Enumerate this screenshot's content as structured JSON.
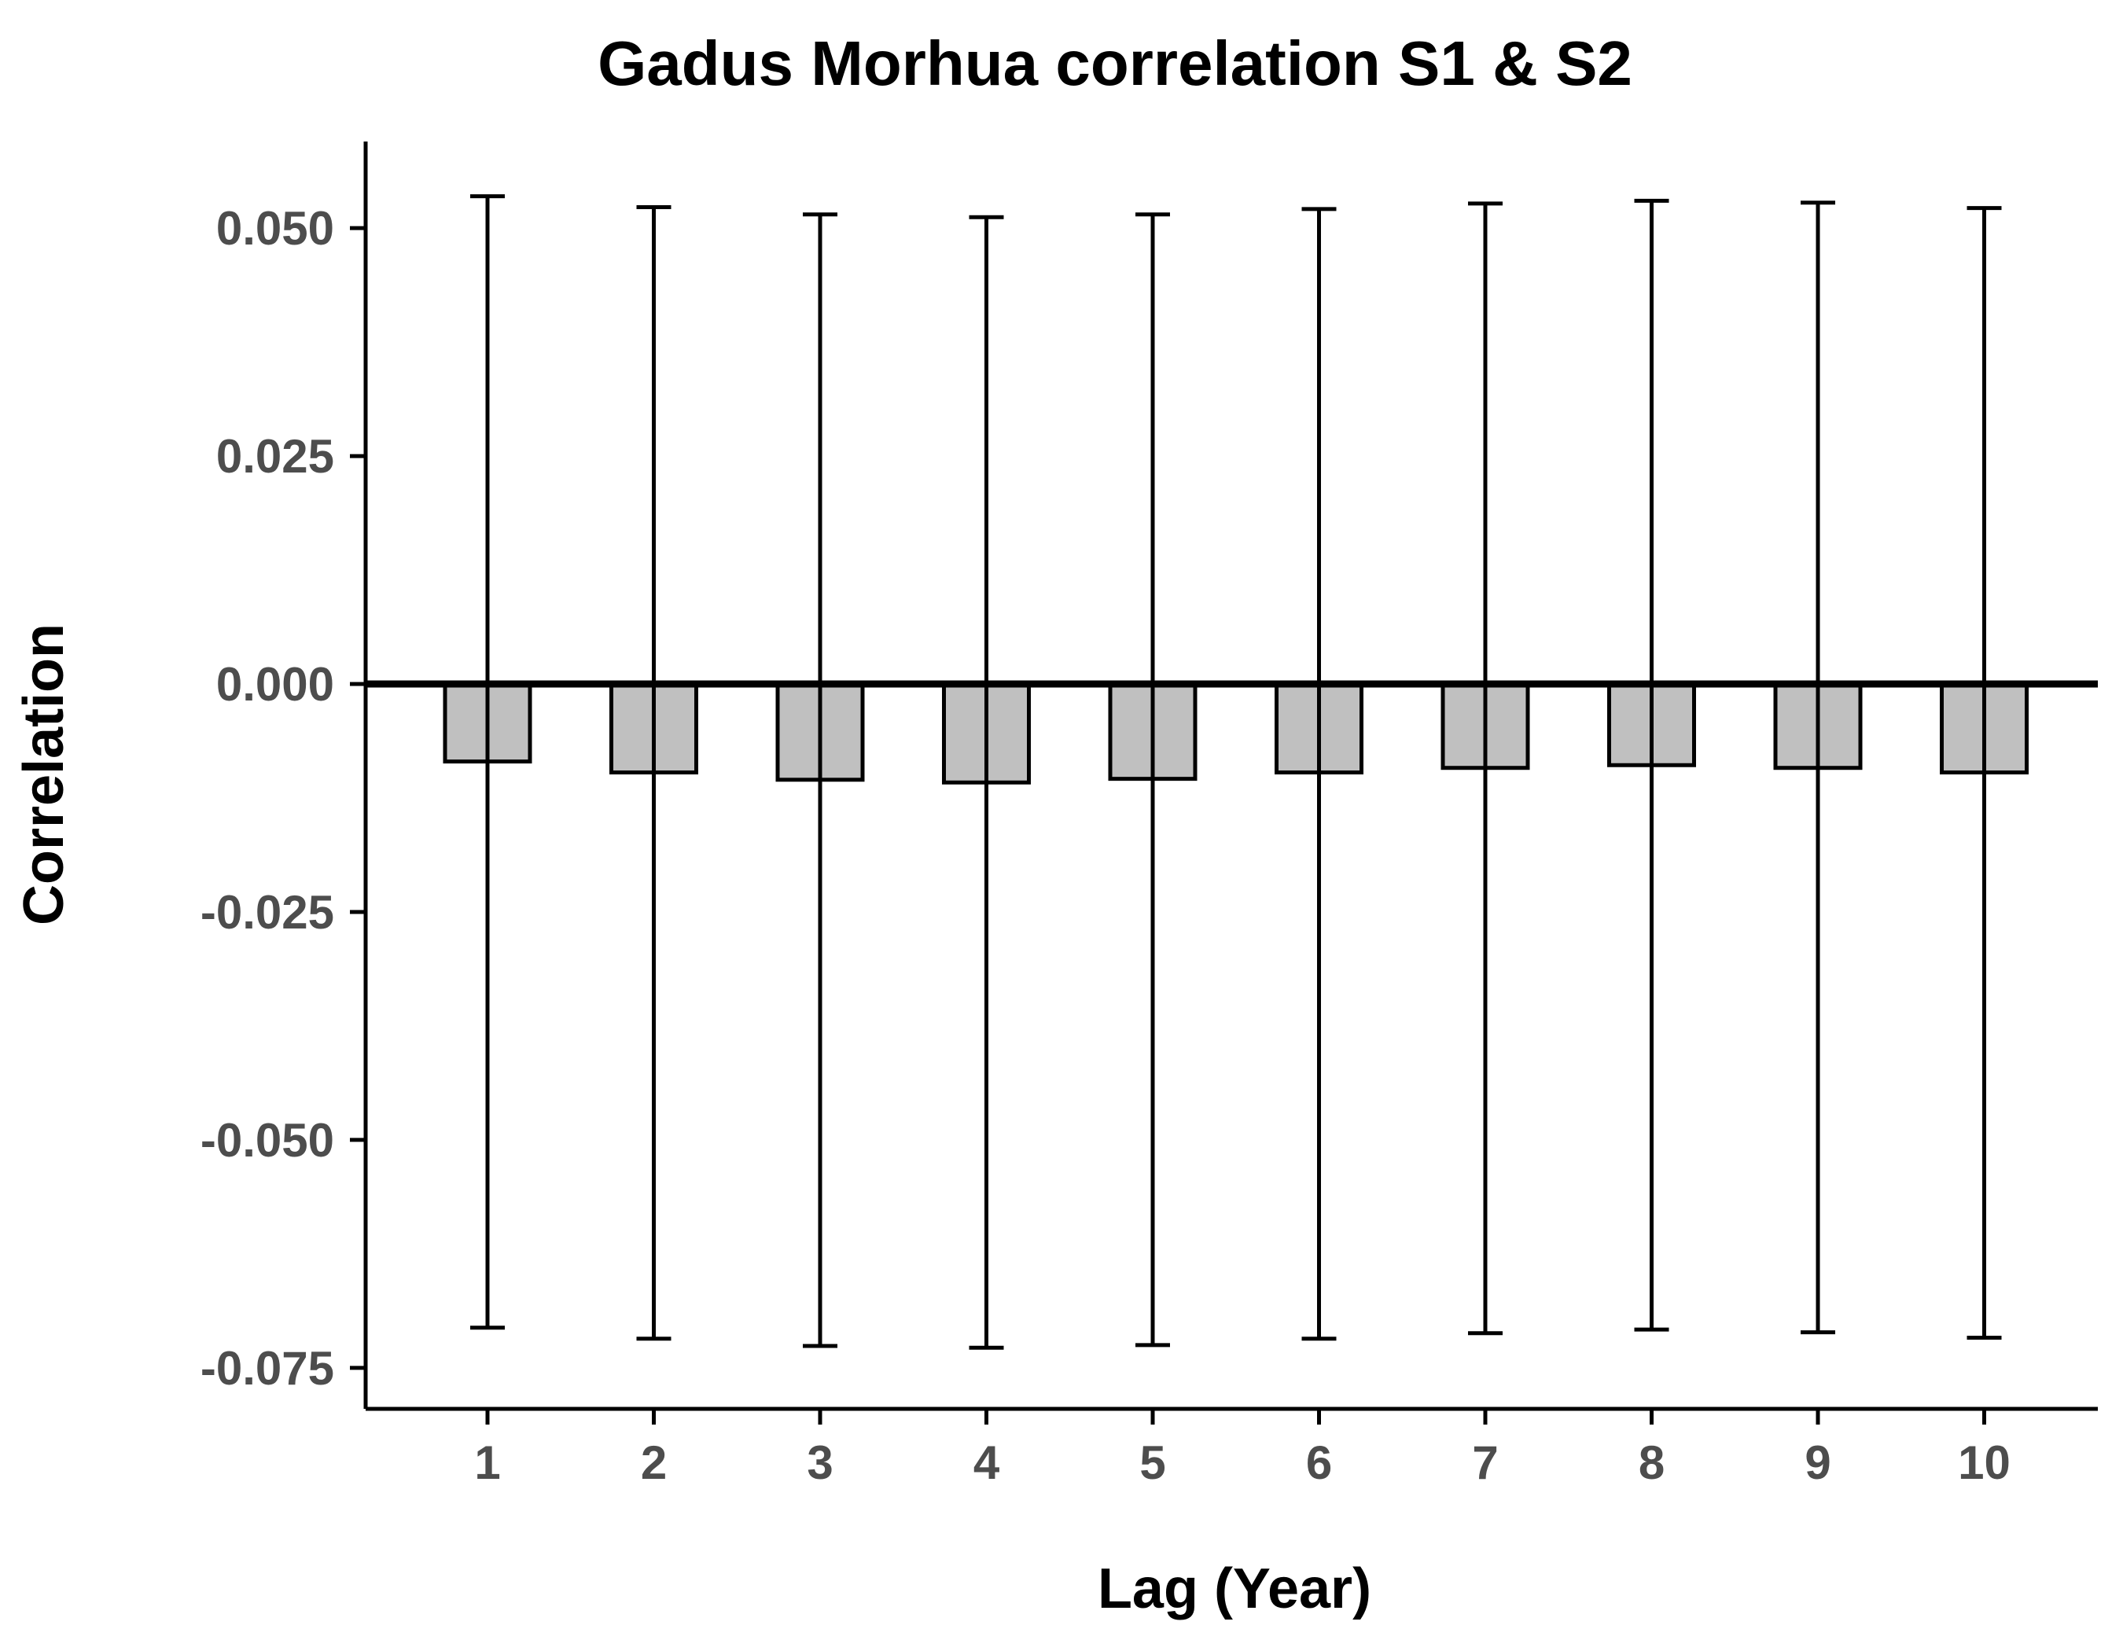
{
  "chart_data": {
    "type": "bar",
    "title": "Gadus Morhua correlation S1 & S2",
    "xlabel": "Lag (Year)",
    "ylabel": "Correlation",
    "categories": [
      "1",
      "2",
      "3",
      "4",
      "5",
      "6",
      "7",
      "8",
      "9",
      "10"
    ],
    "values": [
      -0.0085,
      -0.0097,
      -0.0105,
      -0.0108,
      -0.0104,
      -0.0097,
      -0.0092,
      -0.0089,
      -0.0092,
      -0.0097
    ],
    "error_upper": [
      0.0535,
      0.0523,
      0.0515,
      0.0512,
      0.0515,
      0.0521,
      0.0527,
      0.053,
      0.0528,
      0.0522
    ],
    "error_lower": [
      -0.0706,
      -0.0718,
      -0.0726,
      -0.0728,
      -0.0725,
      -0.0718,
      -0.0712,
      -0.0708,
      -0.0711,
      -0.0717
    ],
    "ylim": [
      -0.0795,
      0.0595
    ],
    "yticks": [
      0.05,
      0.025,
      0.0,
      -0.025,
      -0.05,
      -0.075
    ],
    "ytick_labels": [
      "0.050",
      "0.025",
      "0.000",
      "-0.025",
      "-0.050",
      "-0.075"
    ],
    "bar_color": "#c0c0c0",
    "bar_edge_color": "#000000",
    "grid": false,
    "legend": "none"
  }
}
